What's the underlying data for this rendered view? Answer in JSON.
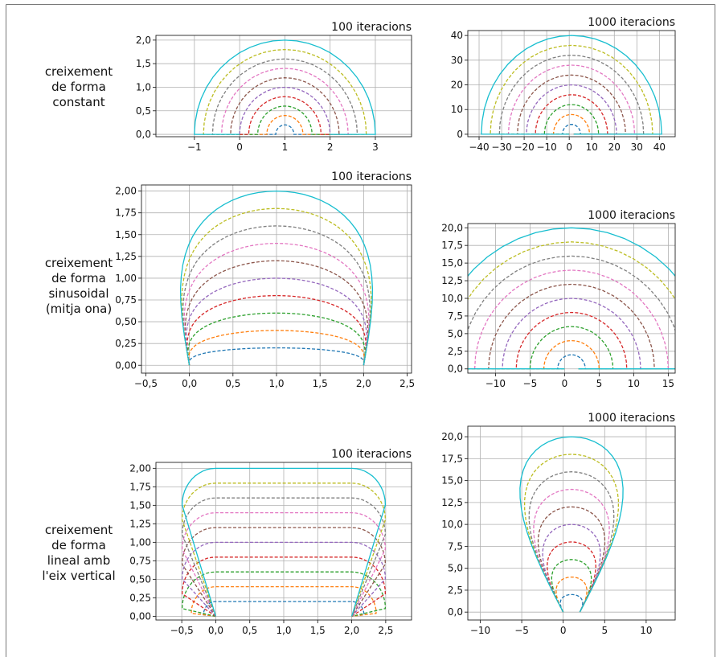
{
  "row_labels": [
    "creixement\nde forma\nconstant",
    "creixement\nde forma\nsinusoidal\n(mitja ona)",
    "creixement\nde forma\nlineal amb\nl'eix vertical"
  ],
  "colors": [
    "#1f77b4",
    "#ff7f0e",
    "#2ca02c",
    "#d62728",
    "#9467bd",
    "#8c564b",
    "#e377c2",
    "#7f7f7f",
    "#bcbd22",
    "#17becf"
  ],
  "chart_data": [
    {
      "type": "line",
      "title": "100 iteracions",
      "shape": "constant",
      "scale": 0.2,
      "n_curves": 10,
      "xlim": [
        -1.85,
        3.8
      ],
      "ylim": [
        -0.05,
        2.1
      ],
      "xticks": [
        -1,
        0,
        1,
        2,
        3
      ],
      "xtick_labels": [
        "−1",
        "0",
        "1",
        "2",
        "3"
      ],
      "yticks": [
        0,
        0.5,
        1,
        1.5,
        2
      ],
      "ytick_labels": [
        "0,0",
        "0,5",
        "1,0",
        "1,5",
        "2,0"
      ]
    },
    {
      "type": "line",
      "title": "1000 iteracions",
      "shape": "constant",
      "scale": 4,
      "n_curves": 10,
      "xlim": [
        -45,
        47
      ],
      "ylim": [
        -1,
        42
      ],
      "xticks": [
        -40,
        -30,
        -20,
        -10,
        0,
        10,
        20,
        30,
        40
      ],
      "xtick_labels": [
        "−40",
        "−30",
        "−20",
        "−10",
        "0",
        "10",
        "20",
        "30",
        "40"
      ],
      "yticks": [
        0,
        10,
        20,
        30,
        40
      ],
      "ytick_labels": [
        "0",
        "10",
        "20",
        "30",
        "40"
      ]
    },
    {
      "type": "line",
      "title": "100 iteracions",
      "shape": "sinusoidal",
      "scale": 0.2,
      "n_curves": 10,
      "xlim": [
        -0.55,
        2.55
      ],
      "ylim": [
        -0.09,
        2.07
      ],
      "xticks": [
        -0.5,
        0,
        0.5,
        1,
        1.5,
        2,
        2.5
      ],
      "xtick_labels": [
        "−0,5",
        "0,0",
        "0,5",
        "1,0",
        "1,5",
        "2,0",
        "2,5"
      ],
      "yticks": [
        0,
        0.25,
        0.5,
        0.75,
        1,
        1.25,
        1.5,
        1.75,
        2
      ],
      "ytick_labels": [
        "0,00",
        "0,25",
        "0,50",
        "0,75",
        "1,00",
        "1,25",
        "1,50",
        "1,75",
        "2,00"
      ]
    },
    {
      "type": "line",
      "title": "1000 iteracions",
      "shape": "sinusoidal",
      "scale": 2,
      "n_curves": 10,
      "xlim": [
        -14,
        16
      ],
      "ylim": [
        -0.6,
        20.6
      ],
      "xticks": [
        -10,
        -5,
        0,
        5,
        10,
        15
      ],
      "xtick_labels": [
        "−10",
        "−5",
        "0",
        "5",
        "10",
        "15"
      ],
      "yticks": [
        0,
        2.5,
        5,
        7.5,
        10,
        12.5,
        15,
        17.5,
        20
      ],
      "ytick_labels": [
        "0,0",
        "2,5",
        "5,0",
        "7,5",
        "10,0",
        "12,5",
        "15,0",
        "17,5",
        "20,0"
      ]
    },
    {
      "type": "line",
      "title": "100 iteracions",
      "shape": "linear",
      "scale": 0.2,
      "n_curves": 10,
      "xlim": [
        -0.88,
        2.88
      ],
      "ylim": [
        -0.05,
        2.08
      ],
      "xticks": [
        -0.5,
        0,
        0.5,
        1,
        1.5,
        2,
        2.5
      ],
      "xtick_labels": [
        "−0,5",
        "0,0",
        "0,5",
        "1,0",
        "1,5",
        "2,0",
        "2,5"
      ],
      "yticks": [
        0,
        0.25,
        0.5,
        0.75,
        1,
        1.25,
        1.5,
        1.75,
        2
      ],
      "ytick_labels": [
        "0,00",
        "0,25",
        "0,50",
        "0,75",
        "1,00",
        "1,25",
        "1,50",
        "1,75",
        "2,00"
      ]
    },
    {
      "type": "line",
      "title": "1000 iteracions",
      "shape": "linear",
      "scale": 2,
      "n_curves": 10,
      "xlim": [
        -11.5,
        13.5
      ],
      "ylim": [
        -0.9,
        21.2
      ],
      "xticks": [
        -10,
        -5,
        0,
        5,
        10
      ],
      "xtick_labels": [
        "−10",
        "−5",
        "0",
        "5",
        "10"
      ],
      "yticks": [
        0,
        2.5,
        5,
        7.5,
        10,
        12.5,
        15,
        17.5,
        20
      ],
      "ytick_labels": [
        "0,0",
        "2,5",
        "5,0",
        "7,5",
        "10,0",
        "12,5",
        "15,0",
        "17,5",
        "20,0"
      ]
    }
  ]
}
